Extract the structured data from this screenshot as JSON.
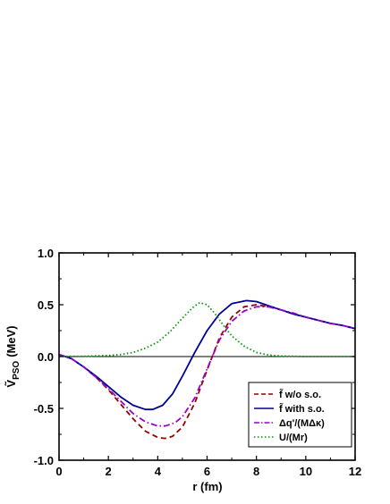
{
  "chart_data": {
    "type": "line",
    "title": "",
    "xlabel": "r (fm)",
    "ylabel_main": "Ṽ",
    "ylabel_sub": "PSO",
    "ylabel_unit": "(MeV)",
    "xlim": [
      0,
      12
    ],
    "ylim": [
      -1.0,
      1.0
    ],
    "xticks": [
      0,
      2,
      4,
      6,
      8,
      10,
      12
    ],
    "xtick_labels": [
      "0",
      "2",
      "4",
      "6",
      "8",
      "10",
      "12"
    ],
    "yticks": [
      -1.0,
      -0.5,
      0.0,
      0.5,
      1.0
    ],
    "ytick_labels": [
      "-1.0",
      "-0.5",
      "0.0",
      "0.5",
      "1.0"
    ],
    "grid": false,
    "zero_line": true,
    "legend_position": "lower-right",
    "series": [
      {
        "name": "f̃ w/o  s.o.",
        "color": "#990000",
        "dash": "dashed",
        "x": [
          0,
          0.5,
          1,
          1.5,
          2,
          2.5,
          3,
          3.5,
          4,
          4.3,
          4.6,
          5,
          5.5,
          6,
          6.5,
          7,
          7.5,
          8,
          8.5,
          9,
          9.5,
          10,
          10.5,
          11,
          11.5,
          12
        ],
        "y": [
          0.02,
          -0.02,
          -0.1,
          -0.2,
          -0.32,
          -0.46,
          -0.6,
          -0.72,
          -0.78,
          -0.79,
          -0.77,
          -0.68,
          -0.45,
          -0.13,
          0.18,
          0.38,
          0.48,
          0.5,
          0.48,
          0.45,
          0.41,
          0.38,
          0.35,
          0.32,
          0.3,
          0.27
        ]
      },
      {
        "name": "f̃ with s.o.",
        "color": "#000099",
        "dash": "solid",
        "x": [
          0,
          0.5,
          1,
          1.5,
          2,
          2.5,
          3,
          3.5,
          3.8,
          4.2,
          4.6,
          5,
          5.5,
          6,
          6.5,
          7,
          7.6,
          8,
          8.5,
          9,
          9.5,
          10,
          10.5,
          11,
          11.5,
          12
        ],
        "y": [
          0.02,
          -0.02,
          -0.1,
          -0.19,
          -0.29,
          -0.39,
          -0.47,
          -0.51,
          -0.51,
          -0.47,
          -0.36,
          -0.19,
          0.04,
          0.25,
          0.41,
          0.51,
          0.54,
          0.53,
          0.49,
          0.45,
          0.41,
          0.38,
          0.35,
          0.32,
          0.3,
          0.27
        ]
      },
      {
        "name": "Δq'/(MΔκ)",
        "color": "#9900cc",
        "dash": "dashdot",
        "x": [
          0,
          0.5,
          1,
          1.5,
          2,
          2.5,
          3,
          3.5,
          4,
          4.3,
          4.7,
          5,
          5.5,
          6,
          6.5,
          7,
          7.5,
          8,
          8.5,
          9,
          9.5,
          10,
          10.5,
          11,
          11.5,
          12
        ],
        "y": [
          0.02,
          -0.02,
          -0.1,
          -0.2,
          -0.31,
          -0.43,
          -0.55,
          -0.63,
          -0.67,
          -0.67,
          -0.64,
          -0.58,
          -0.4,
          -0.12,
          0.16,
          0.34,
          0.44,
          0.48,
          0.48,
          0.45,
          0.42,
          0.38,
          0.35,
          0.32,
          0.3,
          0.27
        ]
      },
      {
        "name": "U/(Mr)",
        "color": "#009900",
        "dash": "dotted",
        "x": [
          0,
          1,
          2,
          2.5,
          3,
          3.5,
          4,
          4.5,
          5,
          5.4,
          5.7,
          6,
          6.3,
          6.7,
          7,
          7.5,
          8,
          8.5,
          9,
          10,
          11,
          12
        ],
        "y": [
          0,
          0.003,
          0.01,
          0.02,
          0.04,
          0.08,
          0.14,
          0.24,
          0.37,
          0.47,
          0.52,
          0.5,
          0.42,
          0.29,
          0.2,
          0.1,
          0.04,
          0.015,
          0.005,
          0,
          0,
          0
        ]
      }
    ]
  }
}
